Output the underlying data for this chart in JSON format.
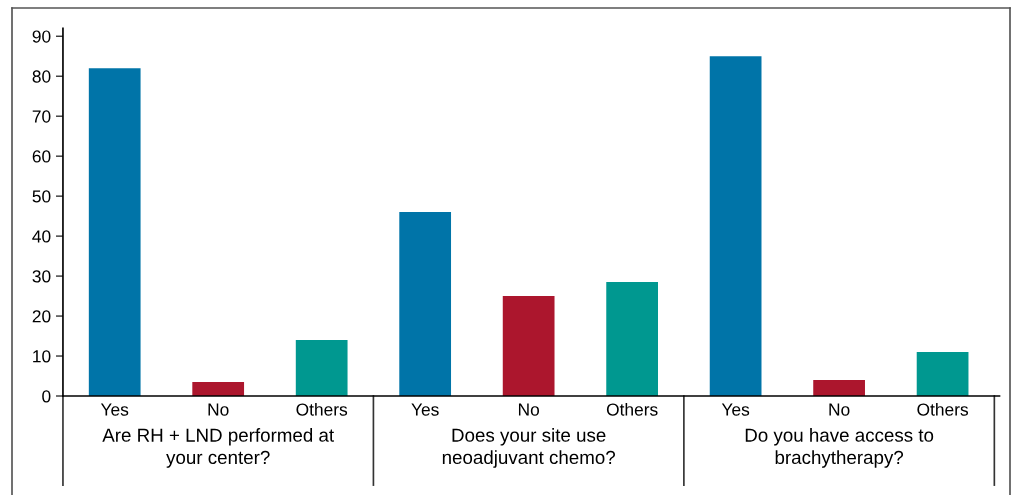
{
  "chart_data": {
    "type": "bar",
    "categories": [
      "Yes",
      "No",
      "Others",
      "Yes",
      "No",
      "Others",
      "Yes",
      "No",
      "Others"
    ],
    "values": [
      82,
      3.5,
      14,
      46,
      25,
      28.5,
      85,
      4,
      11
    ],
    "colors": [
      "#0074a8",
      "#ac162d",
      "#009890",
      "#0074a8",
      "#ac162d",
      "#009890",
      "#0074a8",
      "#ac162d",
      "#009890"
    ],
    "ylim": [
      0,
      92
    ],
    "yticks": [
      0,
      10,
      20,
      30,
      40,
      50,
      60,
      70,
      80,
      90
    ],
    "grid": false,
    "legend": false,
    "annotations": [
      "Are RH + LND performed at\nyour center?",
      "Does your site use\nneoadjuvant chemo?",
      "Do you have access to\nbrachytherapy?"
    ]
  }
}
